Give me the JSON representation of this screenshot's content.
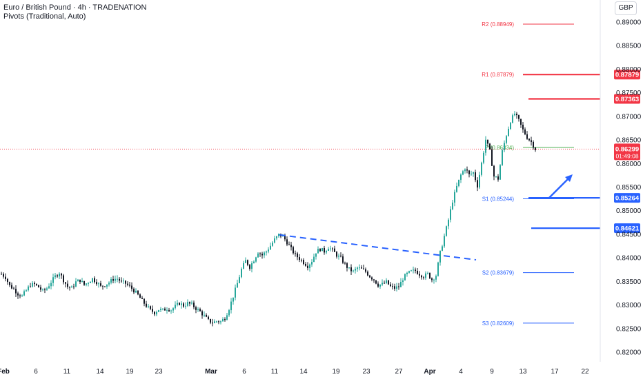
{
  "header": {
    "title": "Euro / British Pound · 4h · TRADENATION",
    "indicator": "Pivots (Traditional, Auto)",
    "currency_button": "GBP"
  },
  "colors": {
    "up": "#26a69a",
    "down": "#ef5350",
    "candle": "#131722",
    "resistance": "#f23645",
    "support": "#2962ff",
    "pivot": "#4caf50",
    "price_line": "#f23645"
  },
  "chart_data": {
    "type": "candlestick",
    "symbol": "EURGBP",
    "timeframe": "4h",
    "ylim": [
      0.8175,
      0.8925
    ],
    "y_ticks": [
      0.82,
      0.825,
      0.83,
      0.835,
      0.84,
      0.845,
      0.85,
      0.855,
      0.86,
      0.865,
      0.87,
      0.875,
      0.88,
      0.885,
      0.89
    ],
    "y_tick_labels": [
      "0.82000",
      "0.82500",
      "0.83000",
      "0.83500",
      "0.84000",
      "0.84500",
      "0.85000",
      "0.85500",
      "0.86000",
      "0.86500",
      "0.87000",
      "0.87500",
      "0.88000",
      "0.88500",
      "0.89000"
    ],
    "x_tick_labels": [
      "Feb",
      "6",
      "11",
      "14",
      "19",
      "23",
      "Mar",
      "6",
      "11",
      "14",
      "19",
      "23",
      "27",
      "Apr",
      "4",
      "9",
      "13",
      "17",
      "22"
    ],
    "x_tick_bold": [
      "Feb",
      "Mar",
      "Apr"
    ],
    "price_path": [
      [
        0,
        0.8365
      ],
      [
        2,
        0.8358
      ],
      [
        4,
        0.834
      ],
      [
        6,
        0.8333
      ],
      [
        8,
        0.8323
      ],
      [
        10,
        0.8318
      ],
      [
        12,
        0.833
      ],
      [
        14,
        0.8342
      ],
      [
        16,
        0.8343
      ],
      [
        18,
        0.8337
      ],
      [
        20,
        0.8328
      ],
      [
        22,
        0.8335
      ],
      [
        24,
        0.8348
      ],
      [
        26,
        0.836
      ],
      [
        28,
        0.8368
      ],
      [
        30,
        0.8352
      ],
      [
        32,
        0.8338
      ],
      [
        34,
        0.8335
      ],
      [
        36,
        0.8348
      ],
      [
        38,
        0.8352
      ],
      [
        40,
        0.8342
      ],
      [
        42,
        0.8348
      ],
      [
        44,
        0.8355
      ],
      [
        46,
        0.8348
      ],
      [
        48,
        0.8338
      ],
      [
        50,
        0.8342
      ],
      [
        52,
        0.8347
      ],
      [
        54,
        0.8354
      ],
      [
        56,
        0.8355
      ],
      [
        58,
        0.8348
      ],
      [
        60,
        0.8345
      ],
      [
        62,
        0.8338
      ],
      [
        64,
        0.833
      ],
      [
        66,
        0.832
      ],
      [
        68,
        0.8308
      ],
      [
        70,
        0.8298
      ],
      [
        72,
        0.8288
      ],
      [
        74,
        0.8283
      ],
      [
        76,
        0.829
      ],
      [
        78,
        0.8288
      ],
      [
        80,
        0.8292
      ],
      [
        82,
        0.8289
      ],
      [
        84,
        0.8296
      ],
      [
        86,
        0.8303
      ],
      [
        88,
        0.8298
      ],
      [
        90,
        0.8303
      ],
      [
        92,
        0.83
      ],
      [
        94,
        0.8292
      ],
      [
        96,
        0.8285
      ],
      [
        98,
        0.8276
      ],
      [
        100,
        0.8266
      ],
      [
        102,
        0.8262
      ],
      [
        104,
        0.8265
      ],
      [
        106,
        0.8264
      ],
      [
        108,
        0.8272
      ],
      [
        110,
        0.8292
      ],
      [
        112,
        0.8318
      ],
      [
        114,
        0.8345
      ],
      [
        116,
        0.8375
      ],
      [
        118,
        0.8393
      ],
      [
        120,
        0.838
      ],
      [
        122,
        0.8395
      ],
      [
        124,
        0.8412
      ],
      [
        126,
        0.8405
      ],
      [
        128,
        0.8413
      ],
      [
        130,
        0.8425
      ],
      [
        132,
        0.8438
      ],
      [
        134,
        0.8448
      ],
      [
        136,
        0.8445
      ],
      [
        138,
        0.8432
      ],
      [
        140,
        0.8418
      ],
      [
        142,
        0.8405
      ],
      [
        144,
        0.8398
      ],
      [
        146,
        0.839
      ],
      [
        148,
        0.8382
      ],
      [
        150,
        0.8393
      ],
      [
        152,
        0.8412
      ],
      [
        154,
        0.8418
      ],
      [
        156,
        0.8413
      ],
      [
        158,
        0.8422
      ],
      [
        160,
        0.8415
      ],
      [
        162,
        0.8405
      ],
      [
        164,
        0.8398
      ],
      [
        166,
        0.8385
      ],
      [
        168,
        0.8375
      ],
      [
        170,
        0.837
      ],
      [
        172,
        0.8378
      ],
      [
        174,
        0.8375
      ],
      [
        176,
        0.837
      ],
      [
        178,
        0.836
      ],
      [
        180,
        0.8353
      ],
      [
        182,
        0.8342
      ],
      [
        184,
        0.8343
      ],
      [
        186,
        0.8348
      ],
      [
        188,
        0.8338
      ],
      [
        190,
        0.8335
      ],
      [
        192,
        0.8338
      ],
      [
        194,
        0.8355
      ],
      [
        196,
        0.8365
      ],
      [
        198,
        0.837
      ],
      [
        200,
        0.8372
      ],
      [
        202,
        0.8365
      ],
      [
        204,
        0.836
      ],
      [
        206,
        0.8365
      ],
      [
        208,
        0.8353
      ],
      [
        210,
        0.8362
      ],
      [
        212,
        0.841
      ],
      [
        214,
        0.8445
      ],
      [
        216,
        0.848
      ],
      [
        218,
        0.852
      ],
      [
        220,
        0.855
      ],
      [
        222,
        0.8575
      ],
      [
        224,
        0.859
      ],
      [
        226,
        0.8575
      ],
      [
        228,
        0.858
      ],
      [
        230,
        0.8552
      ],
      [
        232,
        0.86
      ],
      [
        234,
        0.865
      ],
      [
        236,
        0.8625
      ],
      [
        238,
        0.8572
      ],
      [
        240,
        0.8567
      ],
      [
        242,
        0.8625
      ],
      [
        244,
        0.866
      ],
      [
        246,
        0.869
      ],
      [
        248,
        0.8705
      ],
      [
        250,
        0.869
      ],
      [
        252,
        0.867
      ],
      [
        254,
        0.8655
      ],
      [
        256,
        0.8645
      ],
      [
        258,
        0.863
      ]
    ],
    "candle_count": 259,
    "last_price": "0.86299",
    "countdown": "01:49:08",
    "pivot_levels": [
      {
        "name": "R2",
        "label": "R2 (0.88949)",
        "value": 0.88949
      },
      {
        "name": "R1",
        "label": "R1 (0.87879)",
        "value": 0.87879
      },
      {
        "name": "P",
        "label": "P (0.86334)",
        "value": 0.86334
      },
      {
        "name": "S1",
        "label": "S1 (0.85244)",
        "value": 0.85244
      },
      {
        "name": "S2",
        "label": "S2 (0.83679)",
        "value": 0.83679
      },
      {
        "name": "S3",
        "label": "S3 (0.82609)",
        "value": 0.82609
      }
    ],
    "horizontal_levels": [
      {
        "label": "0.87879",
        "value": 0.87879,
        "kind": "resistance"
      },
      {
        "label": "0.87363",
        "value": 0.87363,
        "kind": "resistance"
      },
      {
        "label": "0.85264",
        "value": 0.85264,
        "kind": "support"
      },
      {
        "label": "0.84621",
        "value": 0.84621,
        "kind": "support"
      }
    ],
    "trendline": {
      "from": [
        0.8448
      ],
      "to": [
        0.8395
      ],
      "style": "dashed"
    },
    "arrow": {
      "direction": "up",
      "color": "#2962ff"
    }
  }
}
